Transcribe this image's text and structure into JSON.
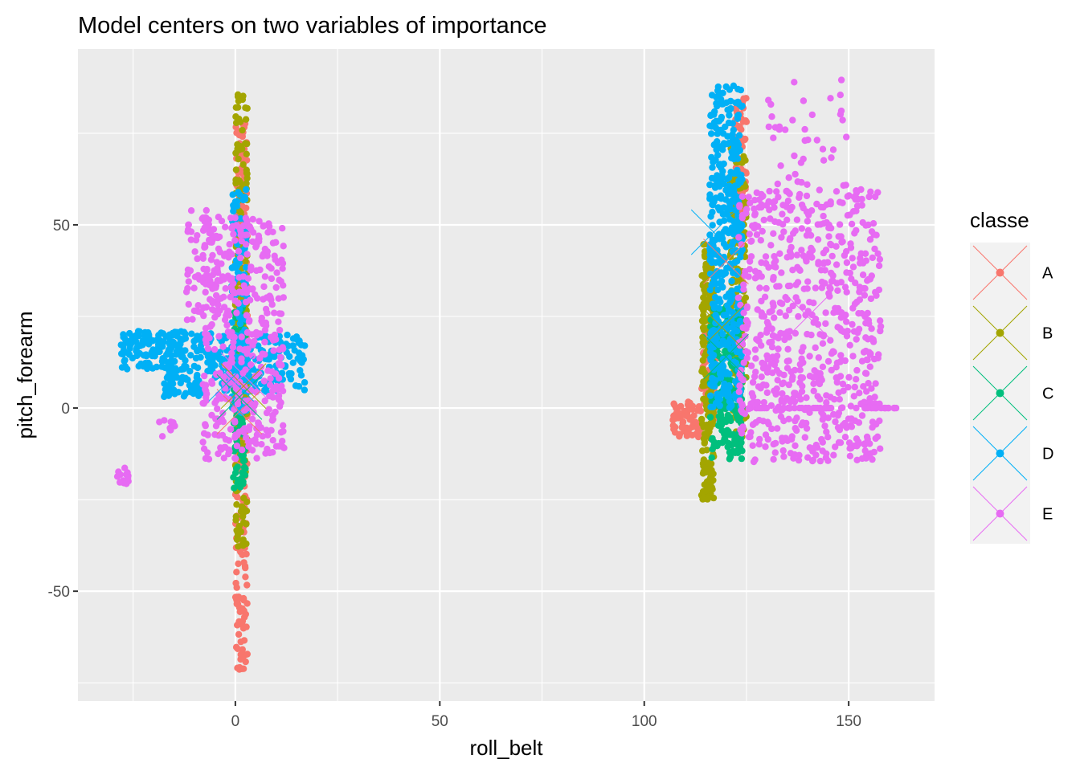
{
  "chart_data": {
    "type": "scatter",
    "title": "Model centers on two variables of importance",
    "xlabel": "roll_belt",
    "ylabel": "pitch_forearm",
    "xlim": [
      -38.5,
      171
    ],
    "ylim": [
      -80,
      98
    ],
    "x_ticks": [
      0,
      50,
      100,
      150
    ],
    "y_ticks": [
      -50,
      0,
      50
    ],
    "x_minor": [
      -25,
      25,
      75,
      125
    ],
    "y_minor": [
      -75,
      -25,
      25,
      75
    ],
    "grid": true,
    "legend": {
      "title": "classe",
      "placement": "right"
    },
    "series": [
      {
        "name": "A",
        "color": "#F8766D",
        "clusters": [
          {
            "x": [
              0,
              3
            ],
            "y": [
              -72,
              78
            ],
            "n": 260
          },
          {
            "x": [
              114,
              118
            ],
            "y": [
              -3,
              24
            ],
            "n": 60
          },
          {
            "x": [
              107,
              114
            ],
            "y": [
              -8,
              2
            ],
            "n": 60
          },
          {
            "x": [
              122,
              125
            ],
            "y": [
              50,
              86
            ],
            "n": 80
          }
        ],
        "centers": [
          {
            "x": 1,
            "y": -1
          },
          {
            "x": 120,
            "y": 40
          }
        ]
      },
      {
        "name": "B",
        "color": "#A3A500",
        "clusters": [
          {
            "x": [
              0,
              3
            ],
            "y": [
              -38,
              89
            ],
            "n": 180
          },
          {
            "x": [
              114,
              117
            ],
            "y": [
              -25,
              45
            ],
            "n": 220
          },
          {
            "x": [
              121,
              125
            ],
            "y": [
              -10,
              72
            ],
            "n": 150
          }
        ],
        "centers": [
          {
            "x": 2,
            "y": 6
          },
          {
            "x": 119,
            "y": 22
          }
        ]
      },
      {
        "name": "C",
        "color": "#00BF7D",
        "clusters": [
          {
            "x": [
              -0.5,
              2.5
            ],
            "y": [
              -22,
              28
            ],
            "n": 120
          },
          {
            "x": [
              116,
              124
            ],
            "y": [
              -14,
              28
            ],
            "n": 220
          }
        ],
        "centers": [
          {
            "x": 1,
            "y": 3
          },
          {
            "x": 120,
            "y": 14
          }
        ]
      },
      {
        "name": "D",
        "color": "#00B0F6",
        "clusters": [
          {
            "x": [
              -28,
              -5
            ],
            "y": [
              10,
              21
            ],
            "n": 180
          },
          {
            "x": [
              -18,
              -8
            ],
            "y": [
              3,
              9
            ],
            "n": 50
          },
          {
            "x": [
              -5,
              17
            ],
            "y": [
              4,
              20
            ],
            "n": 180
          },
          {
            "x": [
              -1,
              3
            ],
            "y": [
              -3,
              60
            ],
            "n": 110
          },
          {
            "x": [
              116,
              124
            ],
            "y": [
              0,
              88
            ],
            "n": 420
          }
        ],
        "centers": [
          {
            "x": -1,
            "y": 8
          },
          {
            "x": 117,
            "y": 48
          }
        ]
      },
      {
        "name": "E",
        "color": "#E76BF3",
        "clusters": [
          {
            "x": [
              -29,
              -26
            ],
            "y": [
              -21,
              -16
            ],
            "n": 14
          },
          {
            "x": [
              -20,
              -14
            ],
            "y": [
              -8,
              -2
            ],
            "n": 8
          },
          {
            "x": [
              -12,
              -3
            ],
            "y": [
              24,
              54
            ],
            "n": 60
          },
          {
            "x": [
              -8,
              12
            ],
            "y": [
              -14,
              52
            ],
            "n": 420
          },
          {
            "x": [
              123,
              158
            ],
            "y": [
              -15,
              60
            ],
            "n": 700
          },
          {
            "x": [
              130,
              150
            ],
            "y": [
              60,
              90
            ],
            "n": 40
          },
          {
            "x": [
              125,
              162
            ],
            "y": [
              0,
              0
            ],
            "n": 50
          }
        ],
        "centers": [
          {
            "x": 2,
            "y": 9
          },
          {
            "x": 140,
            "y": 25
          }
        ]
      }
    ]
  }
}
